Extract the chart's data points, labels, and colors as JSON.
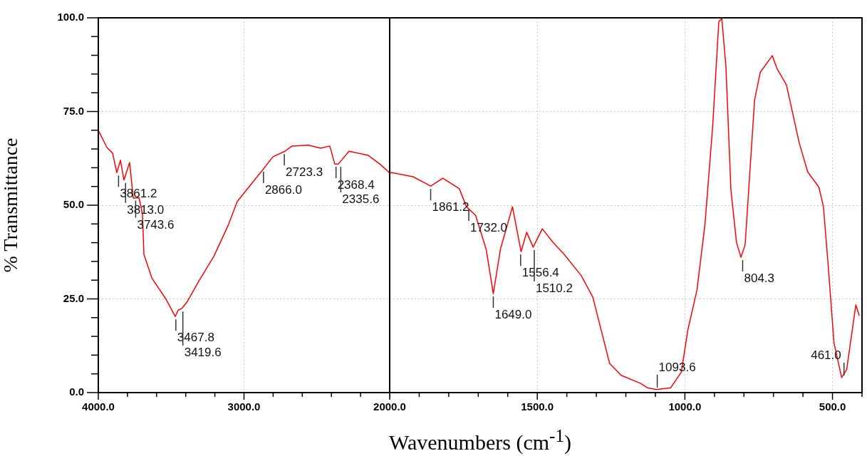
{
  "chart_data": [
    {
      "type": "line",
      "ylabel": "% Transmittance",
      "xlabel": "Wavenumbers (cm$^{-1}$)",
      "grid": true,
      "legend": false,
      "xlim": [
        4000,
        2000
      ],
      "xticks": [
        {
          "value": 4000,
          "label": "4000.0"
        },
        {
          "value": 3800,
          "label": null
        },
        {
          "value": 3600,
          "label": null
        },
        {
          "value": 3400,
          "label": null
        },
        {
          "value": 3200,
          "label": null
        },
        {
          "value": 3000,
          "label": "3000.0"
        },
        {
          "value": 2800,
          "label": null
        },
        {
          "value": 2600,
          "label": null
        },
        {
          "value": 2400,
          "label": null
        },
        {
          "value": 2200,
          "label": null
        },
        {
          "value": 2000,
          "label": "2000.0"
        }
      ],
      "ylim": [
        0,
        100
      ],
      "yticks": [
        {
          "value": 0,
          "label": "0.0"
        },
        {
          "value": 5,
          "label": null
        },
        {
          "value": 10,
          "label": null
        },
        {
          "value": 15,
          "label": null
        },
        {
          "value": 20,
          "label": null
        },
        {
          "value": 25,
          "label": "25.0"
        },
        {
          "value": 30,
          "label": null
        },
        {
          "value": 35,
          "label": null
        },
        {
          "value": 40,
          "label": null
        },
        {
          "value": 45,
          "label": null
        },
        {
          "value": 50,
          "label": "50.0"
        },
        {
          "value": 55,
          "label": null
        },
        {
          "value": 60,
          "label": null
        },
        {
          "value": 65,
          "label": null
        },
        {
          "value": 70,
          "label": null
        },
        {
          "value": 75,
          "label": "75.0"
        },
        {
          "value": 80,
          "label": null
        },
        {
          "value": 85,
          "label": null
        },
        {
          "value": 90,
          "label": null
        },
        {
          "value": 95,
          "label": null
        },
        {
          "value": 100,
          "label": "100.0"
        }
      ],
      "series": [
        {
          "color": "#ff0000",
          "x": [
            4000,
            3941,
            3902,
            3873,
            3848,
            3824,
            3785,
            3760,
            3721,
            3697,
            3687,
            3633,
            3535,
            3472,
            3452,
            3428,
            3389,
            3306,
            3208,
            3110,
            3046,
            2949,
            2866,
            2802,
            2719,
            2670,
            2557,
            2474,
            2411,
            2377,
            2352,
            2279,
            2147,
            2068,
            2000
          ],
          "values": [
            70.0,
            65.4,
            63.9,
            58.7,
            62.0,
            56.7,
            61.4,
            51.9,
            52.0,
            47.7,
            36.9,
            30.6,
            24.9,
            20.3,
            22.0,
            22.4,
            24.3,
            30.0,
            36.3,
            44.5,
            51.0,
            55.7,
            59.7,
            62.9,
            64.4,
            65.8,
            66.0,
            65.2,
            65.8,
            61.0,
            61.0,
            64.4,
            63.3,
            61.0,
            58.6
          ]
        }
      ],
      "annotations": [
        {
          "text": "3861.2",
          "x": 3861.2,
          "y": 58.7
        },
        {
          "text": "3813.0",
          "x": 3813.0,
          "y": 56.7
        },
        {
          "text": "3743.6",
          "x": 3743.6,
          "y": 52
        },
        {
          "text": "3467.8",
          "x": 3467.8,
          "y": 20.3
        },
        {
          "text": "3419.6",
          "x": 3419.6,
          "y": 22.4
        },
        {
          "text": "2866.0",
          "x": 2866.0,
          "y": 59.7
        },
        {
          "text": "2723.3",
          "x": 2723.3,
          "y": 64.4
        },
        {
          "text": "2368.4",
          "x": 2368.4,
          "y": 61
        },
        {
          "text": "2335.6",
          "x": 2335.6,
          "y": 61
        }
      ]
    },
    {
      "type": "line",
      "grid": true,
      "legend": false,
      "tick_labels": "x",
      "xlim": [
        2000,
        400
      ],
      "xticks": [
        {
          "value": 2000,
          "label": null
        },
        {
          "value": 1900,
          "label": null
        },
        {
          "value": 1800,
          "label": null
        },
        {
          "value": 1700,
          "label": null
        },
        {
          "value": 1600,
          "label": null
        },
        {
          "value": 1500,
          "label": "1500.0"
        },
        {
          "value": 1400,
          "label": null
        },
        {
          "value": 1300,
          "label": null
        },
        {
          "value": 1200,
          "label": null
        },
        {
          "value": 1100,
          "label": null
        },
        {
          "value": 1000,
          "label": "1000.0"
        },
        {
          "value": 900,
          "label": null
        },
        {
          "value": 800,
          "label": null
        },
        {
          "value": 700,
          "label": null
        },
        {
          "value": 600,
          "label": null
        },
        {
          "value": 500,
          "label": "500.0"
        },
        {
          "value": 400,
          "label": null
        }
      ],
      "ylim": [
        0,
        100
      ],
      "yticks": [
        0,
        25,
        50,
        75,
        100
      ],
      "series": [
        {
          "color": "#ff0000",
          "x": [
            2000,
            1993,
            1921,
            1861,
            1820,
            1764,
            1740,
            1709,
            1673,
            1649,
            1625,
            1584,
            1555,
            1536,
            1514,
            1483,
            1447,
            1409,
            1351,
            1312,
            1255,
            1216,
            1151,
            1127,
            1096,
            1048,
            1012,
            990,
            959,
            932,
            906,
            885,
            875,
            861,
            844,
            825,
            810,
            796,
            764,
            745,
            704,
            688,
            656,
            613,
            584,
            546,
            531,
            515,
            495,
            469,
            452,
            421,
            409
          ],
          "values": [
            58.6,
            58.7,
            57.6,
            55.1,
            57.2,
            54.4,
            49.6,
            47.3,
            38.2,
            26.4,
            38.2,
            49.6,
            37.6,
            42.8,
            38.8,
            43.7,
            40.1,
            36.9,
            31.2,
            25.5,
            7.8,
            4.6,
            2.5,
            1.3,
            0.8,
            1.3,
            5.5,
            16.7,
            27.4,
            44.9,
            70.9,
            99.0,
            99.8,
            87.0,
            54.0,
            40.0,
            36.1,
            39.4,
            78.0,
            85.4,
            89.9,
            86.5,
            82.1,
            66.7,
            58.9,
            54.8,
            49.8,
            34.4,
            13.3,
            4.0,
            6.1,
            23.4,
            20.5
          ]
        }
      ],
      "annotations": [
        {
          "text": "1861.2",
          "x": 1861.2,
          "y": 55.1
        },
        {
          "text": "1732.0",
          "x": 1732.0,
          "y": 49.6
        },
        {
          "text": "1649.0",
          "x": 1649.0,
          "y": 26.4
        },
        {
          "text": "1556.4",
          "x": 1556.4,
          "y": 37.6
        },
        {
          "text": "1510.2",
          "x": 1510.2,
          "y": 38.8
        },
        {
          "text": "1093.6",
          "x": 1093.6,
          "y": 0.8
        },
        {
          "text": "804.3",
          "x": 804.3,
          "y": 36.1
        },
        {
          "text": "461.0",
          "x": 461.0,
          "y": 4
        }
      ]
    }
  ]
}
